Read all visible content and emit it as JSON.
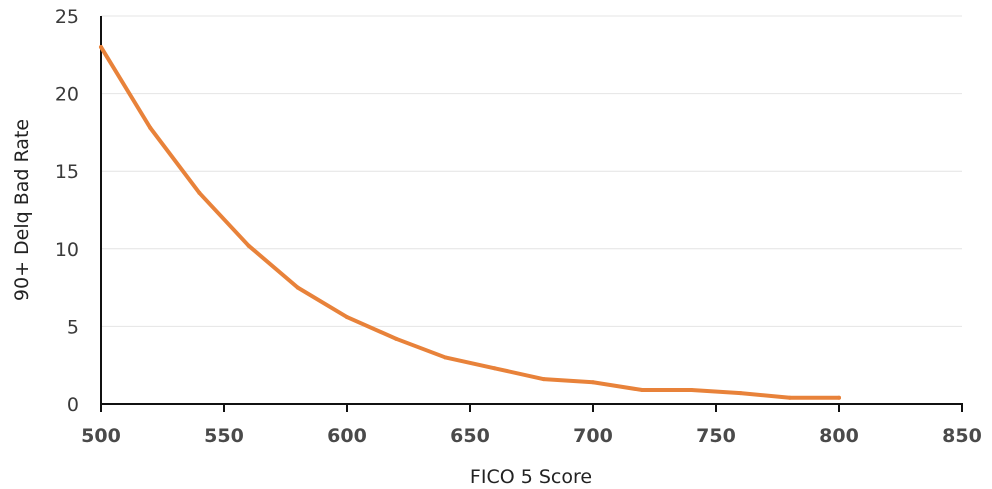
{
  "chart_data": {
    "type": "line",
    "title": "",
    "xlabel": "FICO 5 Score",
    "ylabel": "90+ Delq Bad Rate",
    "xlim": [
      500,
      850
    ],
    "ylim": [
      0,
      25
    ],
    "xticks": [
      500,
      550,
      600,
      650,
      700,
      750,
      800,
      850
    ],
    "yticks": [
      0,
      5,
      10,
      15,
      20,
      25
    ],
    "grid": "horizontal",
    "series": [
      {
        "color": "#e8823a",
        "x": [
          500,
          520,
          540,
          560,
          580,
          600,
          620,
          640,
          660,
          680,
          700,
          720,
          740,
          760,
          780,
          800
        ],
        "y": [
          23.0,
          17.8,
          13.6,
          10.2,
          7.5,
          5.6,
          4.2,
          3.0,
          2.3,
          1.6,
          1.4,
          0.9,
          0.9,
          0.7,
          0.4,
          0.4
        ]
      }
    ]
  }
}
